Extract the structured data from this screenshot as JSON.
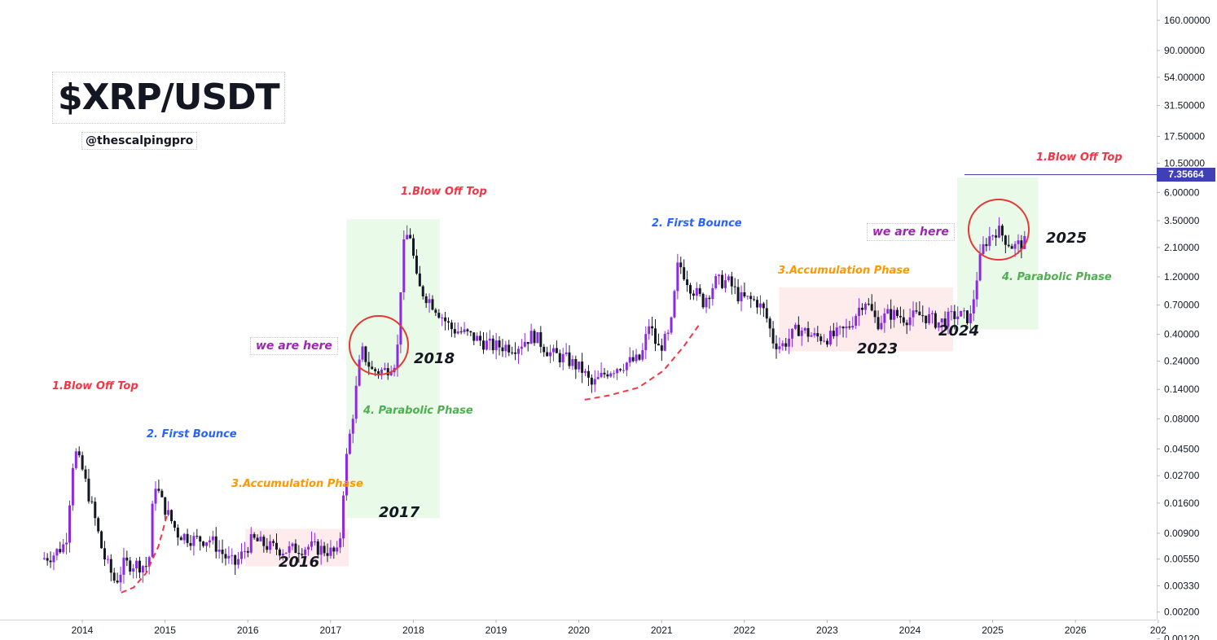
{
  "header": {
    "title": "$XRP/USDT",
    "handle": "@thescalpingpro"
  },
  "colors": {
    "bull": "#8a2be2",
    "bear": "#131722",
    "green_zone": "#e9fbe8",
    "red_zone": "#fdeceb",
    "blow_off": "#f23645",
    "bounce": "#2962ff",
    "accumulation": "#ff9800",
    "parabolic": "#4caf50",
    "we_are_here": "#9c27b0",
    "price_line": "#3f3fb8"
  },
  "annotations": {
    "cycle1": {
      "blow_off": "1.Blow Off Top",
      "bounce": "2. First Bounce",
      "accumulation": "3.Accumulation Phase",
      "year_accum": "2016"
    },
    "cycle2": {
      "blow_off": "1.Blow Off Top",
      "parabolic": "4. Parabolic Phase",
      "we_are_here": "we are here",
      "year_circle": "2018",
      "year_parabolic": "2017",
      "bounce": "2. First Bounce",
      "accumulation": "3.Accumulation Phase",
      "year_accum": "2023"
    },
    "cycle3": {
      "blow_off": "1.Blow Off Top",
      "we_are_here": "we are here",
      "parabolic": "4. Parabolic Phase",
      "year_circle": "2025",
      "year_breakout": "2024"
    }
  },
  "chart_data": {
    "type": "candlestick",
    "title": "$XRP/USDT",
    "y_scale": "log",
    "ylim": [
      0.001,
      200
    ],
    "x_ticks": [
      "2014",
      "2015",
      "2016",
      "2017",
      "2018",
      "2019",
      "2020",
      "2021",
      "2022",
      "2023",
      "2024",
      "2025",
      "2026",
      "202"
    ],
    "y_ticks": [
      "160.00000",
      "90.00000",
      "54.00000",
      "31.50000",
      "17.50000",
      "10.50000",
      "6.00000",
      "3.50000",
      "2.10000",
      "1.20000",
      "0.70000",
      "0.40000",
      "0.24000",
      "0.14000",
      "0.08000",
      "0.04500",
      "0.02700",
      "0.01600",
      "0.00900",
      "0.00550",
      "0.00330",
      "0.00200",
      "0.00120"
    ],
    "current_price": 7.35664,
    "current_price_label": "7.35664",
    "price_path": [
      [
        2013.55,
        0.0055
      ],
      [
        2013.7,
        0.006
      ],
      [
        2013.85,
        0.0075
      ],
      [
        2013.95,
        0.045
      ],
      [
        2014.05,
        0.03
      ],
      [
        2014.2,
        0.012
      ],
      [
        2014.3,
        0.006
      ],
      [
        2014.45,
        0.0035
      ],
      [
        2014.55,
        0.005
      ],
      [
        2014.7,
        0.005
      ],
      [
        2014.85,
        0.0048
      ],
      [
        2014.92,
        0.025
      ],
      [
        2015.0,
        0.017
      ],
      [
        2015.2,
        0.009
      ],
      [
        2015.4,
        0.008
      ],
      [
        2015.6,
        0.008
      ],
      [
        2015.8,
        0.0055
      ],
      [
        2015.9,
        0.005
      ],
      [
        2016.1,
        0.008
      ],
      [
        2016.3,
        0.007
      ],
      [
        2016.5,
        0.0065
      ],
      [
        2016.8,
        0.007
      ],
      [
        2017.0,
        0.0065
      ],
      [
        2017.15,
        0.006
      ],
      [
        2017.22,
        0.03
      ],
      [
        2017.33,
        0.1
      ],
      [
        2017.42,
        0.3
      ],
      [
        2017.55,
        0.2
      ],
      [
        2017.7,
        0.2
      ],
      [
        2017.85,
        0.25
      ],
      [
        2017.92,
        2.0
      ],
      [
        2018.0,
        3.0
      ],
      [
        2018.1,
        1.0
      ],
      [
        2018.3,
        0.7
      ],
      [
        2018.5,
        0.45
      ],
      [
        2018.7,
        0.4
      ],
      [
        2019.0,
        0.32
      ],
      [
        2019.3,
        0.32
      ],
      [
        2019.5,
        0.4
      ],
      [
        2019.7,
        0.28
      ],
      [
        2019.9,
        0.25
      ],
      [
        2020.1,
        0.2
      ],
      [
        2020.2,
        0.15
      ],
      [
        2020.4,
        0.2
      ],
      [
        2020.6,
        0.23
      ],
      [
        2020.8,
        0.25
      ],
      [
        2020.9,
        0.5
      ],
      [
        2021.0,
        0.3
      ],
      [
        2021.15,
        0.4
      ],
      [
        2021.25,
        1.6
      ],
      [
        2021.4,
        1.0
      ],
      [
        2021.55,
        0.75
      ],
      [
        2021.7,
        1.1
      ],
      [
        2021.85,
        1.1
      ],
      [
        2022.0,
        0.8
      ],
      [
        2022.2,
        0.75
      ],
      [
        2022.3,
        0.6
      ],
      [
        2022.4,
        0.35
      ],
      [
        2022.5,
        0.32
      ],
      [
        2022.7,
        0.45
      ],
      [
        2022.9,
        0.38
      ],
      [
        2023.1,
        0.38
      ],
      [
        2023.3,
        0.45
      ],
      [
        2023.5,
        0.8
      ],
      [
        2023.65,
        0.5
      ],
      [
        2023.8,
        0.6
      ],
      [
        2024.0,
        0.55
      ],
      [
        2024.2,
        0.58
      ],
      [
        2024.4,
        0.5
      ],
      [
        2024.6,
        0.58
      ],
      [
        2024.78,
        0.55
      ],
      [
        2024.88,
        1.5
      ],
      [
        2024.95,
        2.3
      ],
      [
        2025.1,
        3.0
      ],
      [
        2025.2,
        2.5
      ],
      [
        2025.3,
        2.1
      ],
      [
        2025.4,
        2.3
      ]
    ]
  }
}
